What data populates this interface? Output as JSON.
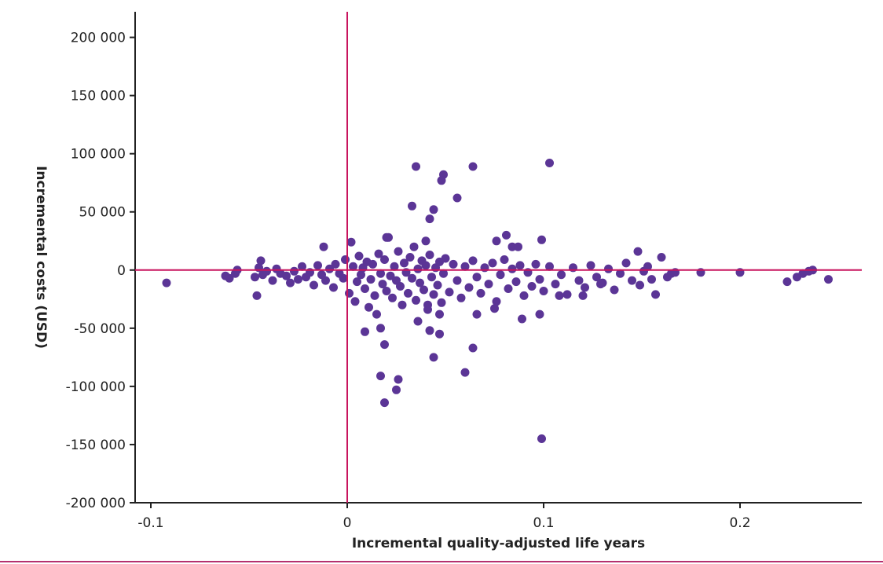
{
  "colors": {
    "points": "#5b3596",
    "reference_lines": "#c8145e",
    "axes": "#222222",
    "frame": "#b5306f"
  },
  "chart_data": {
    "type": "scatter",
    "title": "",
    "xlabel": "Incremental quality-adjusted life years",
    "ylabel": "Incremental costs (USD)",
    "xlim": [
      -0.108,
      0.262
    ],
    "ylim": [
      -200000,
      222000
    ],
    "xticks": [
      -0.1,
      0,
      0.1,
      0.2
    ],
    "xtick_labels": [
      "-0.1",
      "0",
      "0.1",
      "0.2"
    ],
    "yticks": [
      200000,
      150000,
      100000,
      50000,
      0,
      -50000,
      -100000,
      -150000,
      -200000
    ],
    "ytick_labels": [
      "200 000",
      "150 000",
      "100 000",
      "50 000",
      "0",
      "-50 000",
      "-100 000",
      "-150 000",
      "-200 000"
    ],
    "reference_lines": {
      "x": 0,
      "y": 0
    },
    "grid": false,
    "legend": "none",
    "series": [
      {
        "points": [
          [
            -0.092,
            -11000
          ],
          [
            -0.062,
            -5000
          ],
          [
            -0.06,
            -7000
          ],
          [
            -0.057,
            -3000
          ],
          [
            -0.056,
            0
          ],
          [
            -0.047,
            -6000
          ],
          [
            -0.046,
            -22000
          ],
          [
            -0.045,
            2000
          ],
          [
            -0.044,
            8000
          ],
          [
            -0.043,
            -4000
          ],
          [
            -0.041,
            -1000
          ],
          [
            -0.038,
            -9000
          ],
          [
            -0.036,
            1000
          ],
          [
            -0.034,
            -3000
          ],
          [
            -0.031,
            -5000
          ],
          [
            -0.029,
            -11000
          ],
          [
            -0.027,
            -1000
          ],
          [
            -0.025,
            -8000
          ],
          [
            -0.023,
            3000
          ],
          [
            -0.021,
            -6000
          ],
          [
            -0.019,
            -2000
          ],
          [
            -0.017,
            -13000
          ],
          [
            -0.015,
            4000
          ],
          [
            -0.013,
            -4000
          ],
          [
            -0.012,
            20000
          ],
          [
            -0.011,
            -9000
          ],
          [
            -0.009,
            1000
          ],
          [
            -0.007,
            -15000
          ],
          [
            -0.006,
            5000
          ],
          [
            -0.004,
            -3000
          ],
          [
            -0.002,
            -7000
          ],
          [
            -0.001,
            9000
          ],
          [
            0.001,
            -20000
          ],
          [
            0.002,
            24000
          ],
          [
            0.003,
            3000
          ],
          [
            0.004,
            -27000
          ],
          [
            0.005,
            -10000
          ],
          [
            0.006,
            12000
          ],
          [
            0.007,
            -4000
          ],
          [
            0.008,
            2000
          ],
          [
            0.009,
            -16000
          ],
          [
            0.01,
            7000
          ],
          [
            0.011,
            -32000
          ],
          [
            0.012,
            -8000
          ],
          [
            0.013,
            5000
          ],
          [
            0.014,
            -22000
          ],
          [
            0.015,
            -38000
          ],
          [
            0.016,
            14000
          ],
          [
            0.017,
            -3000
          ],
          [
            0.018,
            -12000
          ],
          [
            0.019,
            9000
          ],
          [
            0.02,
            -18000
          ],
          [
            0.021,
            28000
          ],
          [
            0.022,
            -5000
          ],
          [
            0.023,
            -24000
          ],
          [
            0.024,
            3000
          ],
          [
            0.025,
            -9000
          ],
          [
            0.026,
            16000
          ],
          [
            0.027,
            -14000
          ],
          [
            0.028,
            -30000
          ],
          [
            0.029,
            6000
          ],
          [
            0.03,
            -2000
          ],
          [
            0.031,
            -20000
          ],
          [
            0.032,
            11000
          ],
          [
            0.033,
            -7000
          ],
          [
            0.034,
            20000
          ],
          [
            0.035,
            -26000
          ],
          [
            0.036,
            1000
          ],
          [
            0.037,
            -11000
          ],
          [
            0.038,
            8000
          ],
          [
            0.039,
            -17000
          ],
          [
            0.04,
            4000
          ],
          [
            0.041,
            -34000
          ],
          [
            0.042,
            13000
          ],
          [
            0.043,
            -6000
          ],
          [
            0.044,
            -21000
          ],
          [
            0.045,
            2000
          ],
          [
            0.046,
            -13000
          ],
          [
            0.047,
            7000
          ],
          [
            0.048,
            -28000
          ],
          [
            0.049,
            -3000
          ],
          [
            0.05,
            10000
          ],
          [
            0.052,
            -19000
          ],
          [
            0.054,
            5000
          ],
          [
            0.056,
            -9000
          ],
          [
            0.058,
            -24000
          ],
          [
            0.06,
            3000
          ],
          [
            0.062,
            -15000
          ],
          [
            0.064,
            8000
          ],
          [
            0.066,
            -6000
          ],
          [
            0.068,
            -20000
          ],
          [
            0.07,
            2000
          ],
          [
            0.072,
            -12000
          ],
          [
            0.074,
            6000
          ],
          [
            0.076,
            -27000
          ],
          [
            0.078,
            -4000
          ],
          [
            0.08,
            9000
          ],
          [
            0.082,
            -16000
          ],
          [
            0.084,
            1000
          ],
          [
            0.086,
            -10000
          ],
          [
            0.088,
            4000
          ],
          [
            0.09,
            -22000
          ],
          [
            0.092,
            -2000
          ],
          [
            0.094,
            -14000
          ],
          [
            0.096,
            5000
          ],
          [
            0.098,
            -8000
          ],
          [
            0.1,
            -18000
          ],
          [
            0.103,
            3000
          ],
          [
            0.106,
            -12000
          ],
          [
            0.109,
            -4000
          ],
          [
            0.112,
            -21000
          ],
          [
            0.115,
            2000
          ],
          [
            0.118,
            -9000
          ],
          [
            0.121,
            -15000
          ],
          [
            0.124,
            4000
          ],
          [
            0.127,
            -6000
          ],
          [
            0.13,
            -11000
          ],
          [
            0.133,
            1000
          ],
          [
            0.136,
            -17000
          ],
          [
            0.139,
            -3000
          ],
          [
            0.142,
            6000
          ],
          [
            0.145,
            -9000
          ],
          [
            0.148,
            16000
          ],
          [
            0.149,
            -13000
          ],
          [
            0.151,
            -1000
          ],
          [
            0.153,
            3000
          ],
          [
            0.155,
            -8000
          ],
          [
            0.157,
            -21000
          ],
          [
            0.16,
            11000
          ],
          [
            0.163,
            -6000
          ],
          [
            0.165,
            -3000
          ],
          [
            0.167,
            -2000
          ],
          [
            0.18,
            -2000
          ],
          [
            0.2,
            -2000
          ],
          [
            0.224,
            -10000
          ],
          [
            0.229,
            -6000
          ],
          [
            0.232,
            -3000
          ],
          [
            0.235,
            -1000
          ],
          [
            0.237,
            0
          ],
          [
            0.245,
            -8000
          ],
          [
            0.035,
            89000
          ],
          [
            0.049,
            82000
          ],
          [
            0.048,
            77000
          ],
          [
            0.064,
            89000
          ],
          [
            0.103,
            92000
          ],
          [
            0.056,
            62000
          ],
          [
            0.033,
            55000
          ],
          [
            0.044,
            52000
          ],
          [
            0.042,
            44000
          ],
          [
            0.081,
            30000
          ],
          [
            0.099,
            26000
          ],
          [
            0.076,
            25000
          ],
          [
            0.084,
            20000
          ],
          [
            0.087,
            20000
          ],
          [
            0.04,
            25000
          ],
          [
            0.02,
            28000
          ],
          [
            0.017,
            -50000
          ],
          [
            0.009,
            -53000
          ],
          [
            0.019,
            -64000
          ],
          [
            0.036,
            -44000
          ],
          [
            0.042,
            -52000
          ],
          [
            0.047,
            -55000
          ],
          [
            0.044,
            -75000
          ],
          [
            0.064,
            -67000
          ],
          [
            0.06,
            -88000
          ],
          [
            0.026,
            -94000
          ],
          [
            0.017,
            -91000
          ],
          [
            0.025,
            -103000
          ],
          [
            0.019,
            -114000
          ],
          [
            0.099,
            -145000
          ],
          [
            0.047,
            -38000
          ],
          [
            0.089,
            -42000
          ],
          [
            0.098,
            -38000
          ],
          [
            0.066,
            -38000
          ],
          [
            0.041,
            -30000
          ],
          [
            0.075,
            -33000
          ],
          [
            0.108,
            -22000
          ],
          [
            0.129,
            -12000
          ],
          [
            0.12,
            -22000
          ]
        ]
      }
    ]
  }
}
